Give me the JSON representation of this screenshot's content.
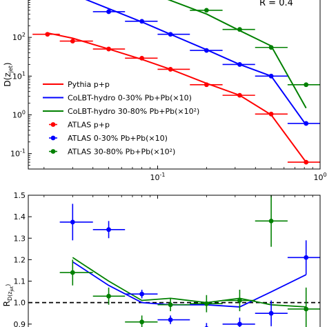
{
  "chart_data": [
    {
      "type": "line",
      "panel": "top",
      "ylabel": "D(z_jet)",
      "ylabel_main": "D(z",
      "ylabel_sub": "jet",
      "ylabel_end": ")",
      "yscale": "log",
      "xscale": "log",
      "xlim": [
        0.016,
        1.0
      ],
      "ylim": [
        0.04,
        1000
      ],
      "yticks": [
        {
          "value": 0.1,
          "base": "10",
          "exp": "-1"
        },
        {
          "value": 1,
          "base": "10",
          "exp": "0"
        },
        {
          "value": 10,
          "base": "10",
          "exp": "1"
        },
        {
          "value": 100,
          "base": "10",
          "exp": "2"
        }
      ],
      "xticks": [
        {
          "value": 0.1,
          "base": "10",
          "exp": "-1"
        },
        {
          "value": 1,
          "base": "10",
          "exp": "0"
        }
      ],
      "annotation": "R = 0.4",
      "legend_position": "lower-left",
      "lines": [
        {
          "name": "Pythia p+p",
          "color": "#ff0000",
          "x": [
            0.021,
            0.03,
            0.05,
            0.08,
            0.12,
            0.2,
            0.32,
            0.5,
            0.82
          ],
          "y": [
            130,
            95,
            50,
            27,
            15,
            6.5,
            3.2,
            1.0,
            0.06
          ]
        },
        {
          "name": "CoLBT-hydro 0-30% Pb+Pb(×10)",
          "color": "#0000ff",
          "x": [
            0.03,
            0.05,
            0.08,
            0.12,
            0.2,
            0.32,
            0.5,
            0.82
          ],
          "y": [
            1300,
            550,
            250,
            120,
            48,
            20,
            10,
            0.55
          ]
        },
        {
          "name": "CoLBT-hydro 30-80% Pb+Pb(×10²)",
          "color": "#008000",
          "x": [
            0.1,
            0.2,
            0.32,
            0.5,
            0.82
          ],
          "y": [
            1200,
            400,
            150,
            60,
            1.5
          ]
        }
      ],
      "markers": [
        {
          "name": "ATLAS p+p",
          "color": "#ff0000",
          "x": [
            0.021,
            0.03,
            0.05,
            0.08,
            0.12,
            0.2,
            0.32,
            0.5,
            0.82
          ],
          "y": [
            120,
            80,
            50,
            29,
            15,
            6,
            3.2,
            1.05,
            0.06
          ],
          "xerr": [
            [
              0.017,
              0.025
            ],
            [
              0.025,
              0.04
            ],
            [
              0.04,
              0.063
            ],
            [
              0.063,
              0.1
            ],
            [
              0.1,
              0.158
            ],
            [
              0.158,
              0.251
            ],
            [
              0.251,
              0.398
            ],
            [
              0.398,
              0.631
            ],
            [
              0.631,
              1.0
            ]
          ]
        },
        {
          "name": "ATLAS 0-30% Pb+Pb(×10)",
          "color": "#0000ff",
          "x": [
            0.05,
            0.08,
            0.12,
            0.2,
            0.32,
            0.5,
            0.82
          ],
          "y": [
            460,
            260,
            120,
            46,
            20,
            10,
            0.6
          ],
          "xerr": [
            [
              0.04,
              0.063
            ],
            [
              0.063,
              0.1
            ],
            [
              0.1,
              0.158
            ],
            [
              0.158,
              0.251
            ],
            [
              0.251,
              0.398
            ],
            [
              0.398,
              0.631
            ],
            [
              0.631,
              1.0
            ]
          ]
        },
        {
          "name": "ATLAS 30-80% Pb+Pb(×10²)",
          "color": "#008000",
          "x": [
            0.2,
            0.32,
            0.5,
            0.82
          ],
          "y": [
            500,
            160,
            55,
            6
          ],
          "xerr": [
            [
              0.158,
              0.251
            ],
            [
              0.251,
              0.398
            ],
            [
              0.398,
              0.631
            ],
            [
              0.631,
              1.0
            ]
          ]
        }
      ]
    },
    {
      "type": "line",
      "panel": "bottom",
      "ylabel": "R_D(z_jet)",
      "ylabel_main": "R",
      "ylabel_sub": "D(z",
      "ylabel_subsub": "jet",
      "ylabel_end": ")",
      "xscale": "log",
      "xlim": [
        0.016,
        1.0
      ],
      "ylim": [
        0.88,
        1.5
      ],
      "yticks": [
        "0.9",
        "1.0",
        "1.1",
        "1.2",
        "1.3",
        "1.4",
        "1.5"
      ],
      "reference_line": 1.0,
      "lines": [
        {
          "name": "0-30%",
          "color": "#0000ff",
          "x": [
            0.03,
            0.05,
            0.08,
            0.12,
            0.2,
            0.32,
            0.5,
            0.82
          ],
          "y": [
            1.19,
            1.08,
            1.0,
            0.99,
            0.99,
            0.98,
            1.05,
            1.13
          ]
        },
        {
          "name": "30-80%",
          "color": "#008000",
          "x": [
            0.03,
            0.05,
            0.08,
            0.12,
            0.2,
            0.32,
            0.5,
            0.82
          ],
          "y": [
            1.21,
            1.1,
            1.01,
            1.02,
            1.0,
            1.02,
            0.99,
            0.98
          ]
        }
      ],
      "markers": [
        {
          "name": "0-30%",
          "color": "#0000ff",
          "x": [
            0.03,
            0.05,
            0.08,
            0.12,
            0.2,
            0.32,
            0.5,
            0.82
          ],
          "y": [
            1.375,
            1.34,
            1.04,
            0.92,
            0.88,
            0.9,
            0.95,
            1.21
          ],
          "xerr": [
            [
              0.025,
              0.04
            ],
            [
              0.04,
              0.063
            ],
            [
              0.063,
              0.1
            ],
            [
              0.1,
              0.158
            ],
            [
              0.158,
              0.251
            ],
            [
              0.251,
              0.398
            ],
            [
              0.398,
              0.631
            ],
            [
              0.631,
              1.0
            ]
          ],
          "yerr": [
            0.085,
            0.04,
            0.02,
            0.02,
            0.025,
            0.03,
            0.06,
            0.08
          ]
        },
        {
          "name": "30-80%",
          "color": "#008000",
          "x": [
            0.03,
            0.05,
            0.08,
            0.12,
            0.2,
            0.32,
            0.5,
            0.82
          ],
          "y": [
            1.14,
            1.03,
            0.91,
            0.99,
            0.995,
            1.01,
            1.38,
            0.97
          ],
          "xerr": [
            [
              0.025,
              0.04
            ],
            [
              0.04,
              0.063
            ],
            [
              0.063,
              0.1
            ],
            [
              0.1,
              0.158
            ],
            [
              0.158,
              0.251
            ],
            [
              0.251,
              0.398
            ],
            [
              0.398,
              0.631
            ],
            [
              0.631,
              1.0
            ]
          ],
          "yerr": [
            0.06,
            0.04,
            0.03,
            0.03,
            0.04,
            0.05,
            0.12,
            0.1
          ]
        }
      ]
    }
  ]
}
